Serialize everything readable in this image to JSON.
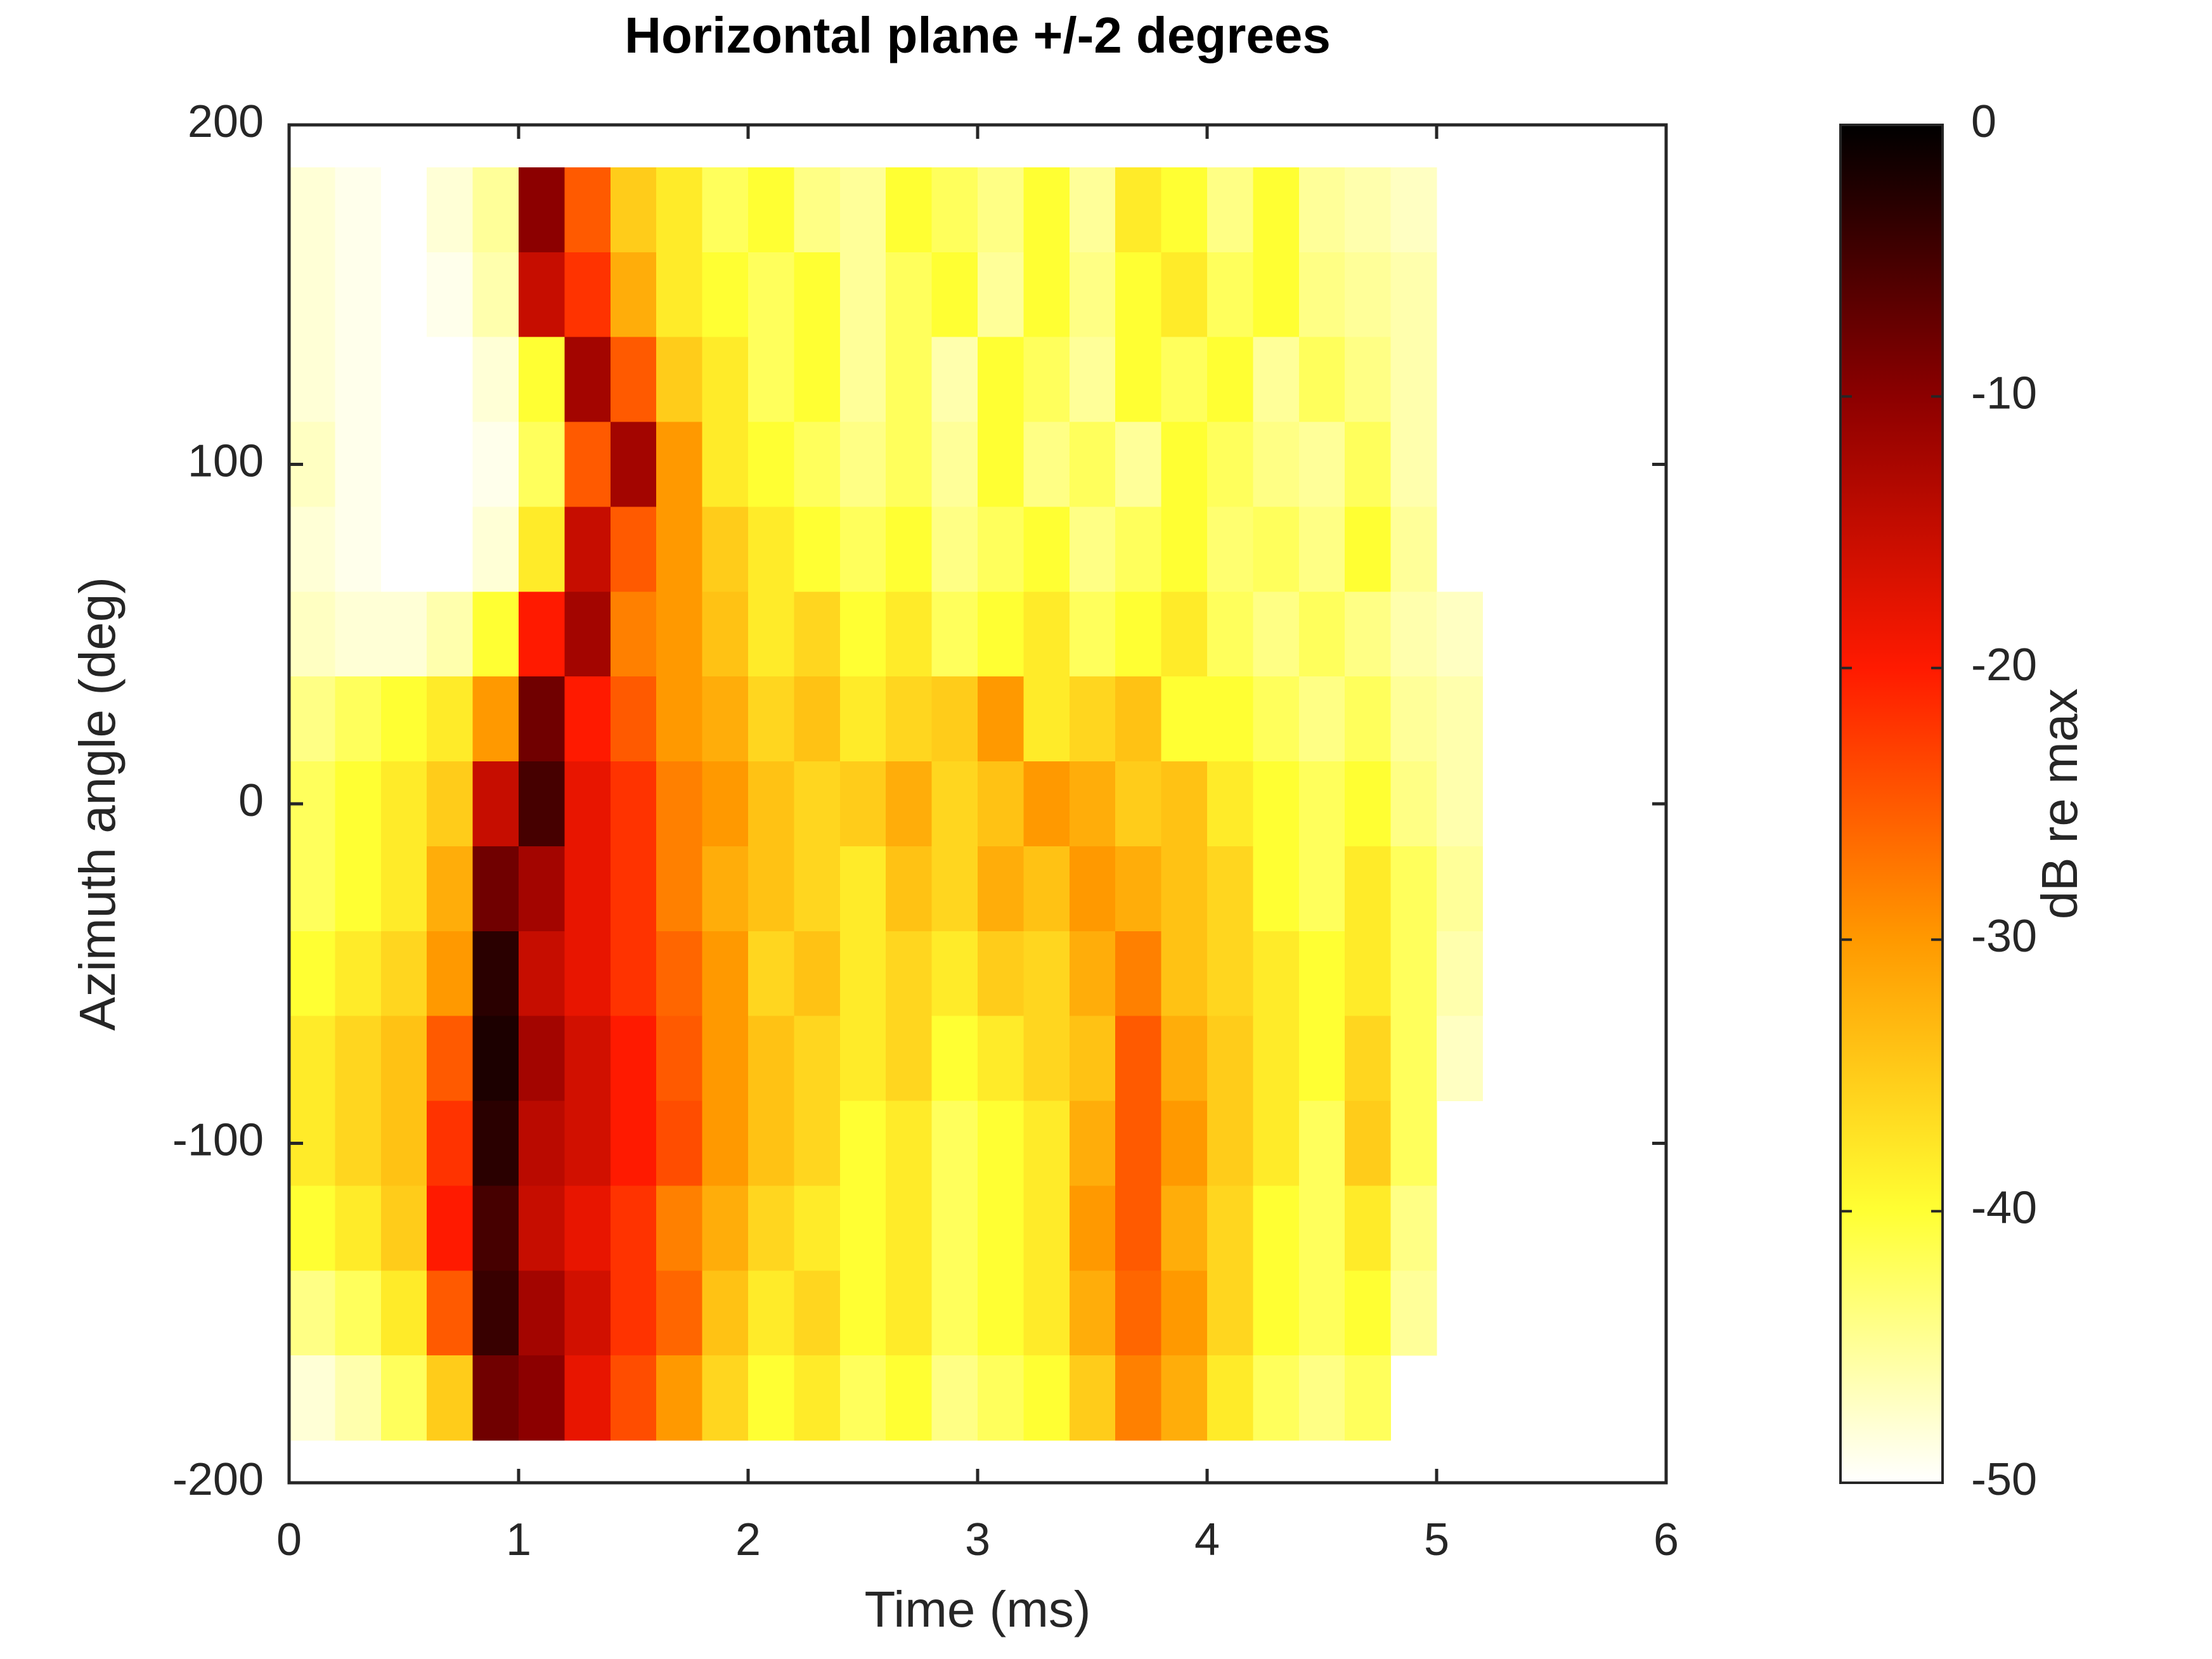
{
  "chart_data": {
    "type": "heatmap",
    "title": "Horizontal plane +/-2 degrees",
    "xlabel": "Time (ms)",
    "ylabel": "Azimuth angle (deg)",
    "colorbar_label": "dB re max",
    "xlim": [
      0,
      6
    ],
    "xticks": [
      0,
      1,
      2,
      3,
      4,
      5,
      6
    ],
    "ylim": [
      -200,
      200
    ],
    "yticks": [
      -200,
      -100,
      0,
      100,
      200
    ],
    "clim": [
      -50,
      0
    ],
    "cticks": [
      -50,
      -40,
      -30,
      -20,
      -10,
      0
    ],
    "colormap": [
      "#ffffff",
      "#ffff33",
      "#ff9900",
      "#ff1a00",
      "#8c0000",
      "#000000"
    ],
    "x": [
      0.1,
      0.3,
      0.5,
      0.7,
      0.9,
      1.1,
      1.3,
      1.5,
      1.7,
      1.9,
      2.1,
      2.3,
      2.5,
      2.7,
      2.9,
      3.1,
      3.3,
      3.5,
      3.7,
      3.9,
      4.1,
      4.3,
      4.5,
      4.7,
      4.9,
      5.1
    ],
    "y": [
      175,
      150,
      125,
      100,
      75,
      50,
      25,
      0,
      -25,
      -50,
      -75,
      -100,
      -125,
      -150,
      -175
    ],
    "values": [
      [
        -48,
        -49,
        -50,
        -48,
        -45,
        -10,
        -25,
        -35,
        -38,
        -42,
        -40,
        -44,
        -45,
        -40,
        -42,
        -44,
        -40,
        -45,
        -38,
        -40,
        -44,
        -40,
        -45,
        -46,
        -47,
        null
      ],
      [
        -48,
        -49,
        -50,
        -49,
        -46,
        -15,
        -22,
        -32,
        -38,
        -40,
        -42,
        -40,
        -45,
        -42,
        -40,
        -45,
        -40,
        -44,
        -40,
        -38,
        -42,
        -40,
        -44,
        -45,
        -46,
        null
      ],
      [
        -48,
        -49,
        -50,
        -50,
        -48,
        -40,
        -12,
        -25,
        -35,
        -38,
        -42,
        -40,
        -45,
        -42,
        -46,
        -40,
        -42,
        -45,
        -40,
        -42,
        -40,
        -45,
        -42,
        -44,
        -46,
        null
      ],
      [
        -47,
        -49,
        -50,
        -50,
        -49,
        -42,
        -25,
        -12,
        -30,
        -38,
        -40,
        -42,
        -44,
        -42,
        -45,
        -40,
        -44,
        -42,
        -45,
        -40,
        -42,
        -44,
        -45,
        -42,
        -46,
        null
      ],
      [
        -48,
        -49,
        -50,
        -50,
        -48,
        -38,
        -15,
        -25,
        -30,
        -35,
        -38,
        -40,
        -42,
        -40,
        -44,
        -42,
        -40,
        -44,
        -42,
        -40,
        -43,
        -42,
        -44,
        -40,
        -45,
        null
      ],
      [
        -47,
        -48,
        -48,
        -46,
        -40,
        -20,
        -12,
        -28,
        -30,
        -34,
        -38,
        -36,
        -40,
        -38,
        -42,
        -40,
        -38,
        -42,
        -40,
        -38,
        -42,
        -44,
        -42,
        -44,
        -46,
        -47
      ],
      [
        -44,
        -42,
        -40,
        -38,
        -30,
        -8,
        -20,
        -25,
        -30,
        -32,
        -36,
        -34,
        -38,
        -36,
        -35,
        -30,
        -38,
        -36,
        -34,
        -40,
        -40,
        -42,
        -44,
        -42,
        -45,
        -46
      ],
      [
        -42,
        -40,
        -38,
        -35,
        -15,
        -5,
        -18,
        -22,
        -28,
        -30,
        -34,
        -36,
        -35,
        -32,
        -36,
        -34,
        -30,
        -32,
        -35,
        -34,
        -38,
        -40,
        -42,
        -40,
        -44,
        -46
      ],
      [
        -42,
        -40,
        -38,
        -32,
        -8,
        -12,
        -18,
        -22,
        -28,
        -32,
        -34,
        -36,
        -38,
        -34,
        -36,
        -32,
        -34,
        -30,
        -32,
        -34,
        -36,
        -40,
        -42,
        -38,
        -42,
        -45
      ],
      [
        -40,
        -38,
        -36,
        -30,
        -3,
        -15,
        -18,
        -22,
        -26,
        -30,
        -36,
        -34,
        -38,
        -36,
        -38,
        -35,
        -36,
        -32,
        -28,
        -34,
        -36,
        -38,
        -40,
        -38,
        -42,
        -46
      ],
      [
        -38,
        -36,
        -34,
        -25,
        -2,
        -12,
        -16,
        -20,
        -25,
        -30,
        -34,
        -36,
        -38,
        -36,
        -40,
        -38,
        -36,
        -34,
        -25,
        -32,
        -35,
        -38,
        -40,
        -36,
        -42,
        -47
      ],
      [
        -38,
        -36,
        -34,
        -22,
        -3,
        -14,
        -16,
        -20,
        -24,
        -30,
        -34,
        -36,
        -40,
        -38,
        -42,
        -40,
        -38,
        -32,
        -25,
        -30,
        -35,
        -38,
        -42,
        -35,
        -42,
        null
      ],
      [
        -40,
        -38,
        -35,
        -20,
        -5,
        -15,
        -18,
        -22,
        -28,
        -32,
        -36,
        -38,
        -40,
        -38,
        -42,
        -40,
        -38,
        -30,
        -25,
        -32,
        -36,
        -40,
        -42,
        -38,
        -44,
        null
      ],
      [
        -44,
        -42,
        -38,
        -25,
        -4,
        -12,
        -16,
        -22,
        -26,
        -34,
        -38,
        -36,
        -40,
        -38,
        -42,
        -40,
        -38,
        -32,
        -26,
        -30,
        -36,
        -40,
        -42,
        -40,
        -45,
        null
      ],
      [
        -48,
        -46,
        -42,
        -35,
        -8,
        -10,
        -18,
        -24,
        -30,
        -36,
        -40,
        -38,
        -42,
        -40,
        -44,
        -42,
        -40,
        -35,
        -28,
        -32,
        -38,
        -42,
        -44,
        -42,
        null,
        null
      ]
    ]
  }
}
